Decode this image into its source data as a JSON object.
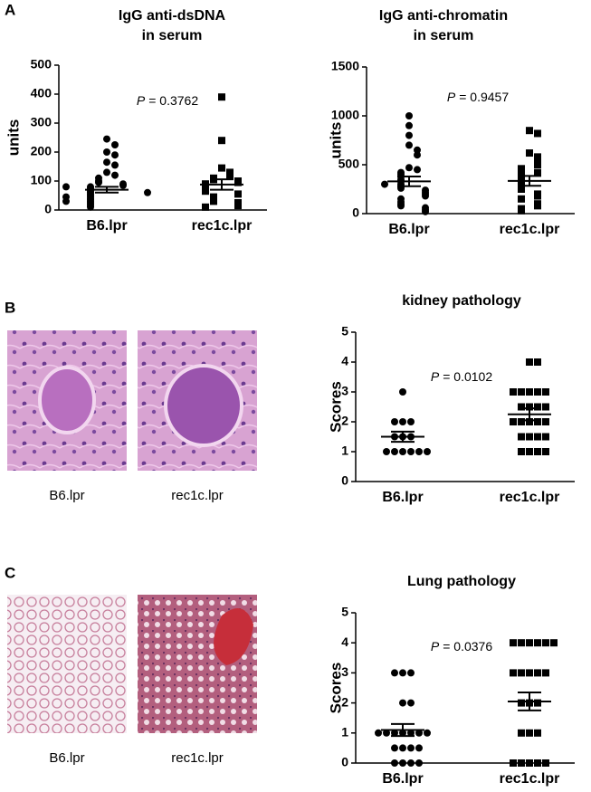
{
  "panels": [
    "A",
    "B",
    "C"
  ],
  "image_captions": [
    "B6.lpr",
    "rec1c.lpr",
    "B6.lpr",
    "rec1c.lpr"
  ],
  "chart_data": [
    {
      "type": "dot",
      "title": [
        "IgG anti-dsDNA",
        "in serum"
      ],
      "y_label": "units",
      "annotation": {
        "symbol": "P",
        "text": "= 0.3762"
      },
      "categories": [
        "B6.lpr",
        "rec1c.lpr"
      ],
      "color": "#000000",
      "ylim": [
        0,
        500
      ],
      "yticks": [
        0,
        100,
        200,
        300,
        400,
        500
      ],
      "groups": [
        {
          "marker": "circle",
          "mean": 70,
          "sem": 10,
          "values": [
            245,
            225,
            200,
            190,
            165,
            155,
            130,
            120,
            110,
            100,
            95,
            90,
            85,
            80,
            75,
            70,
            65,
            60,
            55,
            50,
            45,
            40,
            35,
            30,
            25,
            20,
            15,
            10,
            60,
            45,
            80,
            30
          ]
        },
        {
          "marker": "square",
          "mean": 88,
          "sem": 18,
          "values": [
            390,
            240,
            145,
            130,
            120,
            110,
            105,
            100,
            95,
            90,
            85,
            80,
            75,
            70,
            65,
            55,
            45,
            40,
            30,
            25,
            20,
            15,
            10
          ]
        }
      ]
    },
    {
      "type": "dot",
      "title": [
        "IgG anti-chromatin",
        "in serum"
      ],
      "y_label": "units",
      "annotation": {
        "symbol": "P",
        "text": "= 0.9457"
      },
      "categories": [
        "B6.lpr",
        "rec1c.lpr"
      ],
      "color": "#000000",
      "ylim": [
        0,
        1500
      ],
      "yticks": [
        0,
        500,
        1000,
        1500
      ],
      "groups": [
        {
          "marker": "circle",
          "mean": 330,
          "sem": 50,
          "values": [
            1000,
            900,
            800,
            700,
            650,
            600,
            470,
            450,
            420,
            400,
            380,
            350,
            330,
            300,
            280,
            260,
            240,
            220,
            200,
            180,
            150,
            120,
            100,
            80,
            60,
            40,
            20,
            300
          ]
        },
        {
          "marker": "square",
          "mean": 335,
          "sem": 50,
          "values": [
            850,
            820,
            620,
            580,
            520,
            500,
            460,
            420,
            400,
            380,
            350,
            330,
            300,
            280,
            250,
            200,
            180,
            150,
            100,
            80,
            50,
            30
          ]
        }
      ]
    },
    {
      "type": "dot",
      "title": [
        "kidney pathology"
      ],
      "y_label": "Scores",
      "annotation": {
        "symbol": "P",
        "text": "= 0.0102"
      },
      "categories": [
        "B6.lpr",
        "rec1c.lpr"
      ],
      "color": "#000000",
      "ylim": [
        0,
        5
      ],
      "yticks": [
        0,
        1,
        2,
        3,
        4,
        5
      ],
      "groups": [
        {
          "marker": "circle",
          "mean": 1.5,
          "sem": 0.17,
          "values": [
            3,
            2,
            2,
            2,
            1.5,
            1.5,
            1.5,
            1,
            1,
            1,
            1,
            1,
            1
          ]
        },
        {
          "marker": "square",
          "mean": 2.25,
          "sem": 0.2,
          "values": [
            4,
            4,
            3,
            3,
            3,
            3,
            3,
            2.5,
            2.5,
            2.5,
            2.5,
            2,
            2,
            2,
            2,
            2,
            1.5,
            1.5,
            1.5,
            1.5,
            1,
            1,
            1,
            1
          ]
        }
      ]
    },
    {
      "type": "dot",
      "title": [
        "Lung pathology"
      ],
      "y_label": "Scores",
      "annotation": {
        "symbol": "P",
        "text": "= 0.0376"
      },
      "categories": [
        "B6.lpr",
        "rec1c.lpr"
      ],
      "color": "#000000",
      "ylim": [
        0,
        5
      ],
      "yticks": [
        0,
        1,
        2,
        3,
        4,
        5
      ],
      "groups": [
        {
          "marker": "circle",
          "mean": 1.1,
          "sem": 0.2,
          "values": [
            3,
            3,
            3,
            2,
            2,
            1,
            1,
            1,
            1,
            1,
            1,
            1,
            0.5,
            0.5,
            0.5,
            0.5,
            0,
            0,
            0,
            0
          ]
        },
        {
          "marker": "square",
          "mean": 2.05,
          "sem": 0.3,
          "values": [
            4,
            4,
            4,
            4,
            4,
            4,
            3,
            3,
            3,
            3,
            3,
            2,
            2,
            2,
            1,
            1,
            1,
            0,
            0,
            0,
            0,
            0
          ]
        }
      ]
    }
  ]
}
